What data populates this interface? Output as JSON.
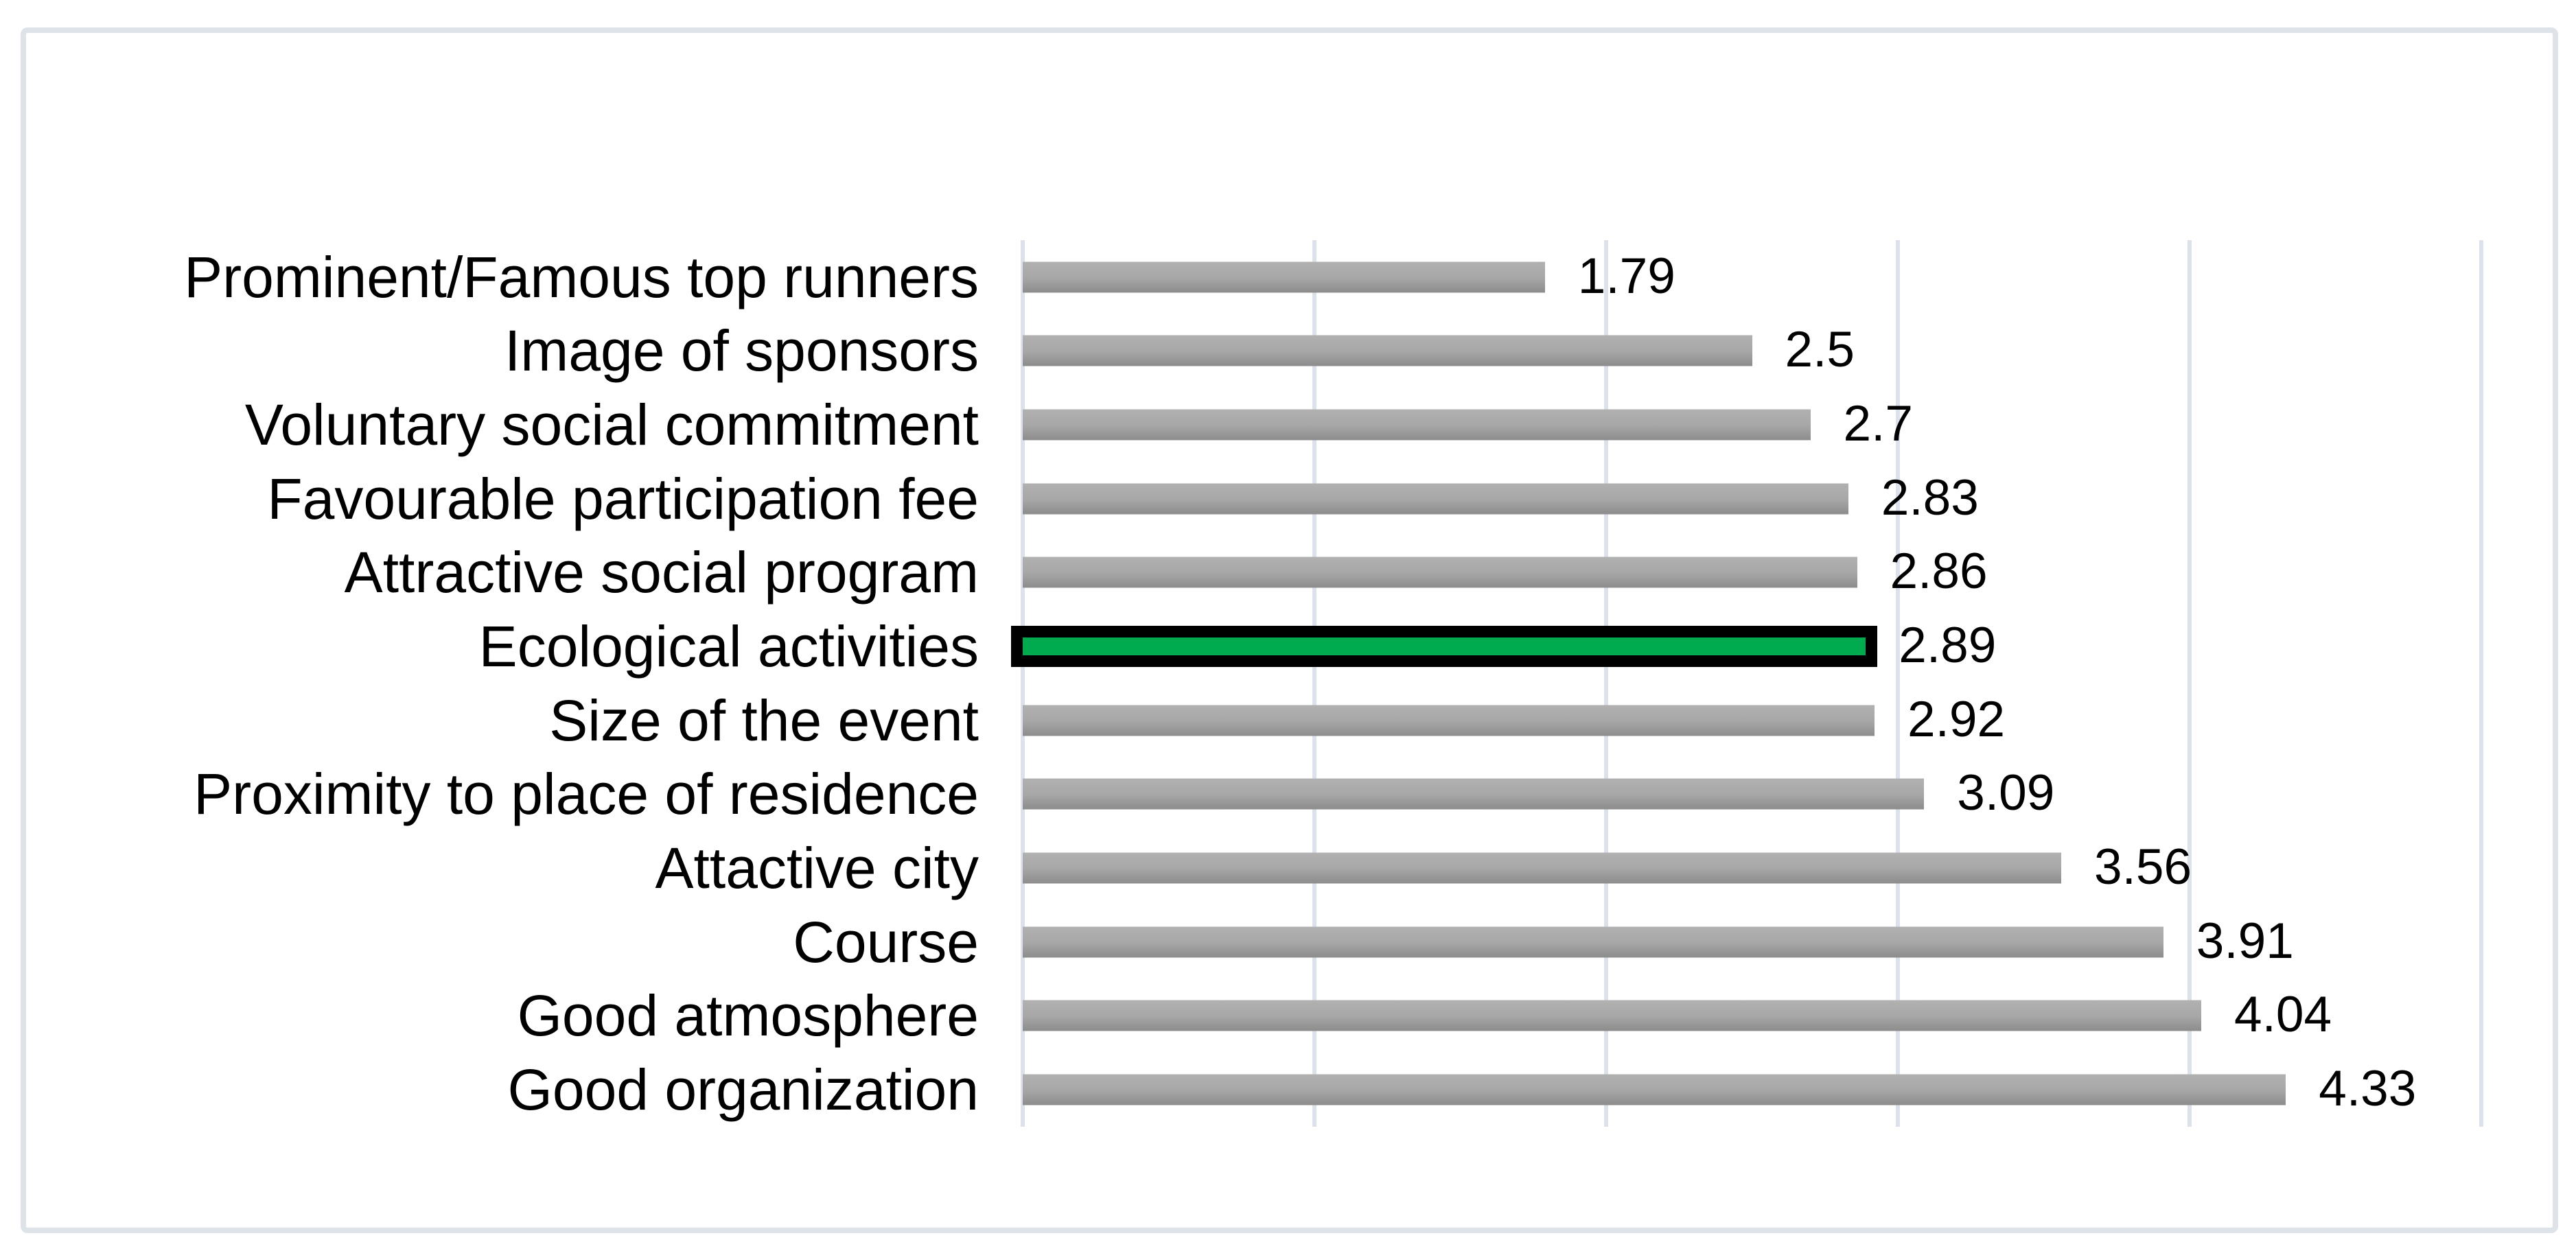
{
  "chart_data": {
    "type": "bar",
    "orientation": "horizontal",
    "title": "",
    "categories": [
      "Prominent/Famous top runners",
      "Image of sponsors",
      "Voluntary social commitment",
      "Favourable participation fee",
      "Attractive social program",
      "Ecological activities",
      "Size of the event",
      "Proximity to place of residence",
      "Attactive city",
      "Course",
      "Good atmosphere",
      "Good organization"
    ],
    "values": [
      1.79,
      2.5,
      2.7,
      2.83,
      2.86,
      2.89,
      2.92,
      3.09,
      3.56,
      3.91,
      4.04,
      4.33
    ],
    "xlim": [
      0,
      5
    ],
    "gridline_step": 1,
    "grid": "vertical-only",
    "legend": "none",
    "highlight": {
      "index": 5,
      "category": "Ecological activities",
      "fill_color": "#00ab50",
      "border_color": "#000000"
    },
    "colors": {
      "bar_gradient_top": "#b2b1b1",
      "bar_gradient_mid": "#a8a7a7",
      "bar_gradient_bottom": "#8d8c8c",
      "gridline": "#dce2ec",
      "chart_border": "#dee3ea",
      "background": "#ffffff",
      "text": "#000000"
    }
  }
}
